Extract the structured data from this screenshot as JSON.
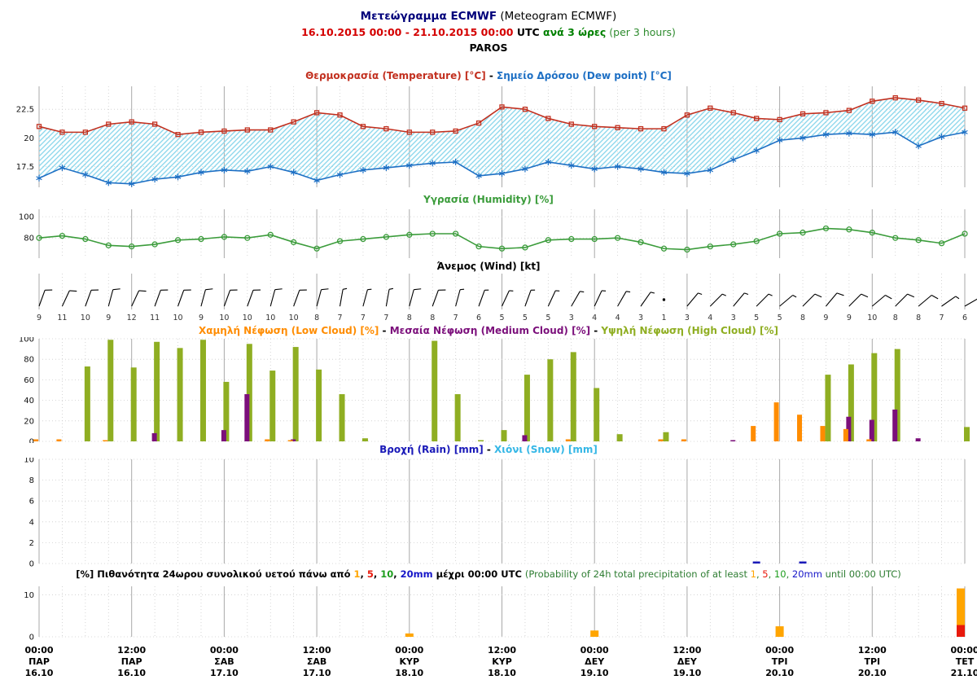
{
  "header": {
    "title_el": "Μετεώγραμμα ECMWF",
    "title_en": " (Meteogram ECMWF)",
    "range": "16.10.2015 00:00 - 21.10.2015 00:00",
    "utc": " UTC ",
    "interval_el": "ανά 3 ώρες",
    "interval_en": " (per 3 hours)",
    "location": "PAROS"
  },
  "colors": {
    "title_navy": "#00007a",
    "date_red": "#d40000",
    "green_bold": "#008000",
    "green_normal": "#2e8b2e",
    "temperature": "#c2301f",
    "dew_point": "#1d6fc4",
    "humidity": "#3b9c3b",
    "cloud_low": "#ff8c00",
    "cloud_medium": "#7b0f7b",
    "cloud_high": "#8fae22",
    "rain": "#1a1ab8",
    "snow": "#35b7e6",
    "prob_1mm": "#ffa500",
    "prob_5mm": "#e8190c",
    "prob_10mm": "#1e9e1e",
    "prob_20mm": "#1515c8",
    "grid_major": "#a9a9a9",
    "grid_minor": "#cccccc"
  },
  "chart_data": [
    {
      "id": "temperature",
      "type": "line",
      "x_range_hours": [
        0,
        120
      ],
      "x_step_hours": 3,
      "ylim": [
        15.7,
        24.5
      ],
      "yticks": [
        17.5,
        20,
        22.5
      ],
      "fill_hatch_color": "#8fd8ec",
      "title_parts": [
        {
          "text": "Θερμοκρασία (Temperature) [°C]",
          "color": "#c2301f"
        },
        {
          "text": " - ",
          "color": "#000000"
        },
        {
          "text": "Σημείο Δρόσου (Dew point) [°C]",
          "color": "#1d6fc4"
        }
      ],
      "series": [
        {
          "name": "temperature",
          "color": "#c2301f",
          "marker": "square",
          "values": [
            21.0,
            20.5,
            20.5,
            21.2,
            21.4,
            21.2,
            20.3,
            20.5,
            20.6,
            20.7,
            20.7,
            21.4,
            22.2,
            22.0,
            21.0,
            20.8,
            20.5,
            20.5,
            20.6,
            21.3,
            22.7,
            22.5,
            21.7,
            21.2,
            21.0,
            20.9,
            20.8,
            20.8,
            22.0,
            22.6,
            22.2,
            21.7,
            21.6,
            22.1,
            22.2,
            22.4,
            23.2,
            23.5,
            23.3,
            23.0,
            22.6
          ]
        },
        {
          "name": "dew_point",
          "color": "#1d6fc4",
          "marker": "asterisk",
          "values": [
            16.5,
            17.4,
            16.8,
            16.1,
            16.0,
            16.4,
            16.6,
            17.0,
            17.2,
            17.1,
            17.5,
            17.0,
            16.3,
            16.8,
            17.2,
            17.4,
            17.6,
            17.8,
            17.9,
            16.7,
            16.9,
            17.3,
            17.9,
            17.6,
            17.3,
            17.5,
            17.3,
            17.0,
            16.9,
            17.2,
            18.1,
            18.9,
            19.8,
            20.0,
            20.3,
            20.4,
            20.3,
            20.5,
            19.3,
            20.1,
            20.5
          ]
        }
      ]
    },
    {
      "id": "humidity",
      "type": "line",
      "x_range_hours": [
        0,
        120
      ],
      "x_step_hours": 3,
      "ylim": [
        61,
        107
      ],
      "yticks": [
        80,
        100
      ],
      "title_parts": [
        {
          "text": "Υγρασία (Humidity) [%]",
          "color": "#3b9c3b"
        }
      ],
      "series": [
        {
          "name": "humidity",
          "color": "#3b9c3b",
          "marker": "circle",
          "values": [
            80,
            82,
            79,
            73,
            72,
            74,
            78,
            79,
            81,
            80,
            83,
            76,
            70,
            77,
            79,
            81,
            83,
            84,
            84,
            72,
            70,
            71,
            78,
            79,
            79,
            80,
            76,
            70,
            69,
            72,
            74,
            77,
            84,
            85,
            89,
            88,
            85,
            80,
            78,
            75,
            84
          ]
        }
      ]
    },
    {
      "id": "wind",
      "type": "wind_barbs",
      "unit": "kt",
      "x_range_hours": [
        0,
        120
      ],
      "x_step_hours": 3,
      "title_parts": [
        {
          "text": "Άνεμος (Wind) [kt]",
          "color": "#000000"
        }
      ],
      "speeds": [
        9,
        11,
        10,
        9,
        12,
        11,
        10,
        9,
        10,
        10,
        10,
        10,
        8,
        7,
        7,
        7,
        8,
        8,
        7,
        6,
        5,
        5,
        5,
        3,
        4,
        4,
        3,
        1,
        3,
        4,
        3,
        5,
        5,
        8,
        9,
        9,
        10,
        8,
        8,
        7,
        6
      ],
      "directions_deg": [
        20,
        25,
        20,
        15,
        25,
        20,
        20,
        15,
        20,
        20,
        15,
        20,
        15,
        10,
        15,
        10,
        15,
        20,
        15,
        20,
        25,
        20,
        25,
        30,
        25,
        30,
        35,
        0,
        40,
        45,
        40,
        45,
        50,
        45,
        40,
        45,
        50,
        45,
        50,
        55,
        60
      ]
    },
    {
      "id": "cloud",
      "type": "bar",
      "x_range_hours": [
        0,
        120
      ],
      "x_step_hours": 3,
      "ylim": [
        0,
        100
      ],
      "yticks": [
        0,
        20,
        40,
        60,
        80,
        100
      ],
      "title_parts": [
        {
          "text": "Χαμηλή Νέφωση (Low Cloud) [%]",
          "color": "#ff8c00"
        },
        {
          "text": " - ",
          "color": "#000000"
        },
        {
          "text": "Μεσαία Νέφωση (Medium Cloud) [%]",
          "color": "#7b0f7b"
        },
        {
          "text": " - ",
          "color": "#000000"
        },
        {
          "text": "Υψηλή Νέφωση (High Cloud) [%]",
          "color": "#8fae22"
        }
      ],
      "series": [
        {
          "name": "low",
          "color": "#ff8c00",
          "values": [
            2,
            2,
            0,
            1,
            0,
            0,
            0,
            0,
            0,
            0,
            2,
            1,
            0,
            0,
            0,
            0,
            0,
            0,
            0,
            0,
            0,
            0,
            0,
            2,
            0,
            0,
            0,
            2,
            2,
            0,
            0,
            15,
            38,
            26,
            15,
            12,
            2,
            0,
            0,
            0,
            0
          ]
        },
        {
          "name": "medium",
          "color": "#7b0f7b",
          "values": [
            0,
            0,
            0,
            0,
            0,
            8,
            0,
            0,
            11,
            46,
            0,
            2,
            0,
            0,
            0,
            0,
            0,
            0,
            0,
            0,
            0,
            6,
            0,
            0,
            0,
            0,
            0,
            0,
            0,
            0,
            1,
            0,
            0,
            0,
            0,
            24,
            21,
            31,
            3,
            0,
            0
          ]
        },
        {
          "name": "high",
          "color": "#8fae22",
          "values": [
            0,
            0,
            73,
            99,
            72,
            97,
            91,
            99,
            58,
            95,
            69,
            92,
            70,
            46,
            3,
            0,
            0,
            98,
            46,
            1,
            11,
            65,
            80,
            87,
            52,
            7,
            0,
            9,
            0,
            0,
            0,
            0,
            0,
            0,
            65,
            75,
            86,
            90,
            0,
            0,
            14
          ]
        }
      ]
    },
    {
      "id": "rain",
      "type": "bar",
      "x_range_hours": [
        0,
        120
      ],
      "x_step_hours": 3,
      "ylim": [
        0,
        10
      ],
      "yticks": [
        0,
        2,
        4,
        6,
        8,
        10
      ],
      "title_parts": [
        {
          "text": "Βροχή (Rain) [mm]",
          "color": "#1a1ab8"
        },
        {
          "text": " - ",
          "color": "#000000"
        },
        {
          "text": "Χιόνι (Snow) [mm]",
          "color": "#35b7e6"
        }
      ],
      "series": [
        {
          "name": "rain",
          "color": "#1a1ab8",
          "values": [
            0,
            0,
            0,
            0,
            0,
            0,
            0,
            0,
            0,
            0,
            0,
            0,
            0,
            0,
            0,
            0,
            0,
            0,
            0,
            0,
            0,
            0,
            0,
            0,
            0,
            0,
            0,
            0,
            0,
            0,
            0,
            0.1,
            0,
            0.1,
            0,
            0,
            0,
            0,
            0,
            0,
            0
          ]
        },
        {
          "name": "snow",
          "color": "#35b7e6",
          "values": [
            0,
            0,
            0,
            0,
            0,
            0,
            0,
            0,
            0,
            0,
            0,
            0,
            0,
            0,
            0,
            0,
            0,
            0,
            0,
            0,
            0,
            0,
            0,
            0,
            0,
            0,
            0,
            0,
            0,
            0,
            0,
            0,
            0,
            0,
            0,
            0,
            0,
            0,
            0,
            0,
            0
          ]
        }
      ]
    },
    {
      "id": "probability",
      "type": "prob_bar",
      "ylim": [
        0,
        12
      ],
      "yticks": [
        0,
        10
      ],
      "x_hours": [
        24,
        48,
        72,
        96,
        120
      ],
      "title_parts": [
        {
          "text": "[%] Πιθανότητα 24ωρου συνολικού υετού πάνω από ",
          "color": "#000000",
          "bold": true
        },
        {
          "text": "1",
          "color": "#ffa500",
          "bold": true
        },
        {
          "text": ", ",
          "color": "#000000",
          "bold": true
        },
        {
          "text": "5",
          "color": "#e8190c",
          "bold": true
        },
        {
          "text": ", ",
          "color": "#000000",
          "bold": true
        },
        {
          "text": "10",
          "color": "#1e9e1e",
          "bold": true
        },
        {
          "text": ", ",
          "color": "#000000",
          "bold": true
        },
        {
          "text": "20mm",
          "color": "#1515c8",
          "bold": true
        },
        {
          "text": " μέχρι 00:00 UTC ",
          "color": "#000000",
          "bold": true
        },
        {
          "text": "(Probability of 24h total precipitation of at least ",
          "color": "#2e7d32",
          "bold": false
        },
        {
          "text": "1",
          "color": "#ffa500",
          "bold": false
        },
        {
          "text": ", ",
          "color": "#2e7d32",
          "bold": false
        },
        {
          "text": "5",
          "color": "#e8190c",
          "bold": false
        },
        {
          "text": ", ",
          "color": "#2e7d32",
          "bold": false
        },
        {
          "text": "10",
          "color": "#1e9e1e",
          "bold": false
        },
        {
          "text": ", ",
          "color": "#2e7d32",
          "bold": false
        },
        {
          "text": "20mm",
          "color": "#1515c8",
          "bold": false
        },
        {
          "text": " until 00:00 UTC)",
          "color": "#2e7d32",
          "bold": false
        }
      ],
      "series": [
        {
          "name": "p_1mm",
          "color": "#ffa500",
          "values": [
            0,
            0.8,
            1.5,
            2.5,
            11.5
          ]
        },
        {
          "name": "p_5mm",
          "color": "#e8190c",
          "values": [
            0,
            0,
            0,
            0,
            2.8
          ]
        },
        {
          "name": "p_10mm",
          "color": "#1e9e1e",
          "values": [
            0,
            0,
            0,
            0,
            0
          ]
        },
        {
          "name": "p_20mm",
          "color": "#1515c8",
          "values": [
            0,
            0,
            0,
            0,
            0
          ]
        }
      ]
    }
  ],
  "xaxis": {
    "labels": [
      {
        "hour": 0,
        "time": "00:00",
        "day": "ΠΑΡ",
        "date": "16.10"
      },
      {
        "hour": 12,
        "time": "12:00",
        "day": "ΠΑΡ",
        "date": "16.10"
      },
      {
        "hour": 24,
        "time": "00:00",
        "day": "ΣΑΒ",
        "date": "17.10"
      },
      {
        "hour": 36,
        "time": "12:00",
        "day": "ΣΑΒ",
        "date": "17.10"
      },
      {
        "hour": 48,
        "time": "00:00",
        "day": "ΚΥΡ",
        "date": "18.10"
      },
      {
        "hour": 60,
        "time": "12:00",
        "day": "ΚΥΡ",
        "date": "18.10"
      },
      {
        "hour": 72,
        "time": "00:00",
        "day": "ΔΕΥ",
        "date": "19.10"
      },
      {
        "hour": 84,
        "time": "12:00",
        "day": "ΔΕΥ",
        "date": "19.10"
      },
      {
        "hour": 96,
        "time": "00:00",
        "day": "ΤΡΙ",
        "date": "20.10"
      },
      {
        "hour": 108,
        "time": "12:00",
        "day": "ΤΡΙ",
        "date": "20.10"
      },
      {
        "hour": 120,
        "time": "00:00",
        "day": "ΤΕΤ",
        "date": "21.10"
      }
    ]
  }
}
